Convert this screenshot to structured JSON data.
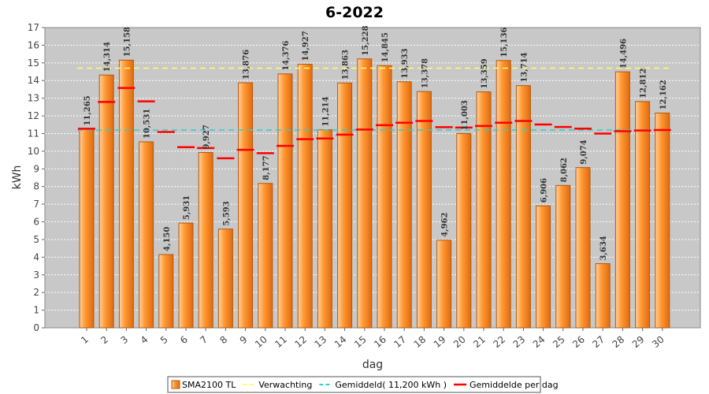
{
  "chart_data": {
    "type": "bar",
    "title": "6-2022",
    "xlabel": "dag",
    "ylabel": "kWh",
    "ylim": [
      0,
      17
    ],
    "yticks": [
      0,
      1,
      2,
      3,
      4,
      5,
      6,
      7,
      8,
      9,
      10,
      11,
      12,
      13,
      14,
      15,
      16,
      17
    ],
    "grid": true,
    "legend_position": "bottom",
    "categories": [
      "1",
      "2",
      "3",
      "4",
      "5",
      "6",
      "7",
      "8",
      "9",
      "10",
      "11",
      "12",
      "13",
      "14",
      "15",
      "16",
      "17",
      "18",
      "19",
      "20",
      "21",
      "22",
      "23",
      "24",
      "25",
      "26",
      "27",
      "28",
      "29",
      "30"
    ],
    "series": [
      {
        "name": "SMA2100 TL",
        "kind": "bar",
        "color": "#ff9933",
        "values": [
          11.265,
          14.314,
          15.158,
          10.531,
          4.15,
          5.931,
          9.927,
          5.593,
          13.876,
          8.177,
          14.376,
          14.927,
          11.214,
          13.863,
          15.228,
          14.845,
          13.933,
          13.378,
          4.962,
          11.003,
          13.359,
          15.136,
          13.714,
          6.906,
          8.062,
          9.074,
          3.634,
          14.496,
          12.812,
          12.162
        ],
        "labels": [
          "11,265",
          "14,314",
          "15,158",
          "10,531",
          "4,150",
          "5,931",
          "9,927",
          "5,593",
          "13,876",
          "8,177",
          "14,376",
          "14,927",
          "11,214",
          "13,863",
          "15,228",
          "14,845",
          "13,933",
          "13,378",
          "4,962",
          "11,003",
          "13,359",
          "15,136",
          "13,714",
          "6,906",
          "8,062",
          "9,074",
          "3,634",
          "14,496",
          "12,812",
          "12,162"
        ]
      },
      {
        "name": "Verwachting",
        "kind": "line",
        "color": "#ffff66",
        "value": 14.7
      },
      {
        "name": "Gemiddeld( 11,200 kWh )",
        "kind": "line",
        "color": "#33cccc",
        "value": 11.2
      },
      {
        "name": "Gemiddelde per dag",
        "kind": "marker",
        "color": "#ff0000",
        "values": [
          11.27,
          12.79,
          13.58,
          12.82,
          11.09,
          10.23,
          10.18,
          9.6,
          10.08,
          9.89,
          10.3,
          10.68,
          10.72,
          10.94,
          11.23,
          11.47,
          11.61,
          11.71,
          11.36,
          11.34,
          11.43,
          11.61,
          11.71,
          11.51,
          11.37,
          11.28,
          11.0,
          11.13,
          11.17,
          11.2
        ]
      }
    ]
  }
}
